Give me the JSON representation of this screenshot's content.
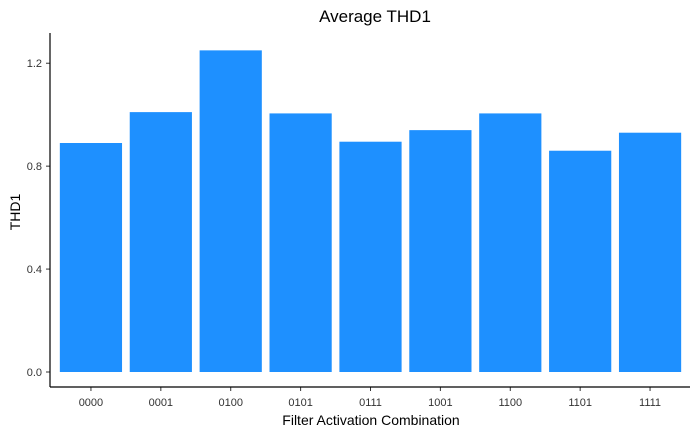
{
  "chart_data": {
    "type": "bar",
    "title": "Average THD1",
    "xlabel": "Filter Activation Combination",
    "ylabel": "THD1",
    "categories": [
      "0000",
      "0001",
      "0100",
      "0101",
      "0111",
      "1001",
      "1100",
      "1101",
      "1111"
    ],
    "values": [
      0.89,
      1.01,
      1.25,
      1.005,
      0.895,
      0.94,
      1.005,
      0.86,
      0.93
    ],
    "ylim": [
      0,
      1.3
    ],
    "yticks": [
      "0.0",
      "0.4",
      "0.8",
      "1.2"
    ],
    "bar_color": "#1E90FF",
    "grid": false
  }
}
